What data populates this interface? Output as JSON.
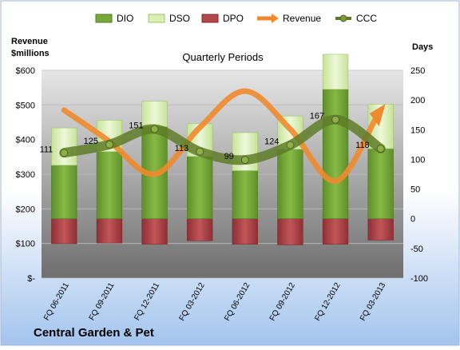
{
  "chart_data": {
    "type": "bar",
    "title": "Quarterly Periods",
    "company": "Central Garden & Pet",
    "left_axis_title": [
      "Revenue",
      "$millions"
    ],
    "right_axis_title": "Days",
    "categories": [
      "FQ 06-2011",
      "FQ 09-2011",
      "FQ 12-2011",
      "FQ 03-2012",
      "FQ 06-2012",
      "FQ 09-2012",
      "FQ 12-2012",
      "FQ 03-2013"
    ],
    "left_ticks": [
      "$-",
      "$100",
      "$200",
      "$300",
      "$400",
      "$500",
      "$600"
    ],
    "left_range": [
      0,
      600
    ],
    "right_ticks": [
      "-100",
      "-50",
      "0",
      "50",
      "100",
      "150",
      "200",
      "250"
    ],
    "right_range": [
      -100,
      250
    ],
    "series": [
      {
        "name": "DIO",
        "axis": "right",
        "kind": "bar",
        "color": "#77a93a",
        "values": [
          90,
          113,
          155,
          105,
          81,
          117,
          218,
          118
        ]
      },
      {
        "name": "DSO",
        "axis": "right",
        "kind": "bar-stacked",
        "color": "#d9f0b3",
        "values": [
          63,
          53,
          43,
          55,
          64,
          56,
          59,
          75
        ]
      },
      {
        "name": "DPO",
        "axis": "right",
        "kind": "bar",
        "color": "#b2474c",
        "values": [
          -42,
          -41,
          -43,
          -37,
          -43,
          -44,
          -43,
          -36
        ]
      },
      {
        "name": "Revenue",
        "axis": "left",
        "kind": "line",
        "color": "#f0892e",
        "values": [
          485,
          395,
          300,
          435,
          540,
          430,
          280,
          480
        ]
      },
      {
        "name": "CCC",
        "axis": "right",
        "kind": "line",
        "color": "#5f7d28",
        "values": [
          111,
          125,
          151,
          113,
          99,
          124,
          167,
          118
        ]
      }
    ],
    "ccc_labels": [
      "111",
      "125",
      "151",
      "113",
      "99",
      "124",
      "167",
      "118"
    ],
    "colors": {
      "background_top": "#ffffff",
      "background_bottom": "#a3c4ee",
      "plot_top": "#e6e6e6",
      "plot_bottom": "#707070"
    },
    "legend_position": "top"
  }
}
